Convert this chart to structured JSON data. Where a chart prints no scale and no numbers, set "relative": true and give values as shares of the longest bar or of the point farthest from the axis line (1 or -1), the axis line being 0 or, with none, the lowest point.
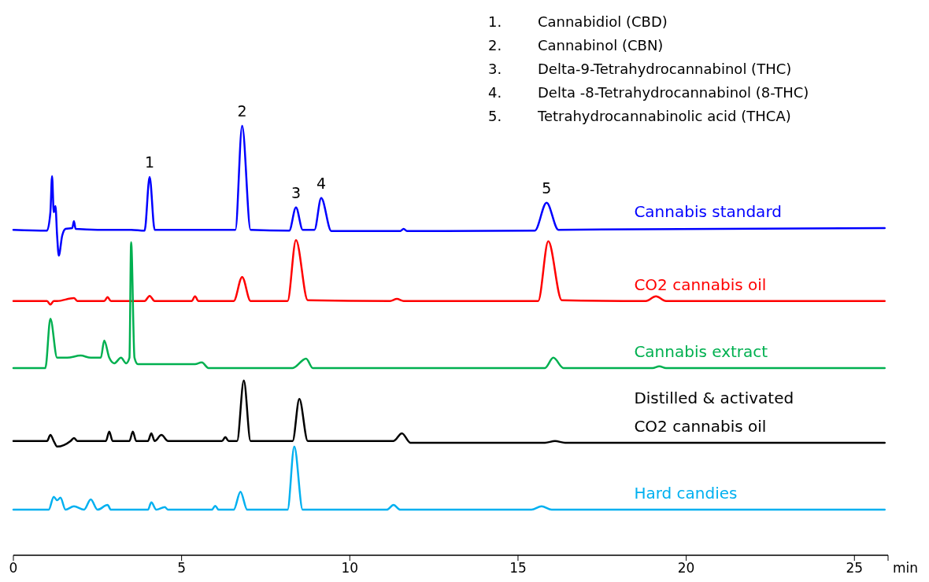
{
  "chart_data": {
    "type": "line",
    "relative": true,
    "xlabel": "min",
    "xlim": [
      0,
      26
    ],
    "xticks": [
      0,
      5,
      10,
      15,
      20,
      25
    ],
    "annotations": [
      "1.        Cannabidiol (CBD)",
      "2.        Cannabinol (CBN)",
      "3.        Delta-9-Tetrahydrocannabinol (THC)",
      "4.        Delta -8-Tetrahydrocannabinol (8-THC)",
      "5.        Tetrahydrocannabinolic acid (THCA)",
      {
        "text": "1",
        "x": 4.05,
        "y": 0.881
      },
      {
        "text": "2",
        "x": 6.8,
        "y": 1.0
      },
      {
        "text": "3",
        "x": 8.4,
        "y": 0.81
      },
      {
        "text": "4",
        "x": 9.15,
        "y": 0.832
      },
      {
        "text": "5",
        "x": 15.85,
        "y": 0.821
      }
    ],
    "series": [
      {
        "name": "Cannabis standard",
        "color": "#0000ff",
        "x": [
          0,
          1.0,
          1.1,
          1.15,
          1.2,
          1.25,
          1.3,
          1.35,
          1.45,
          1.55,
          1.75,
          1.8,
          1.85,
          2.5,
          3.5,
          3.9,
          4.05,
          4.2,
          6.6,
          6.8,
          7.05,
          8.2,
          8.4,
          8.6,
          8.95,
          9.15,
          9.45,
          11.5,
          11.6,
          11.7,
          15.5,
          15.85,
          16.2,
          25.9
        ],
        "values": [
          0.758,
          0.756,
          0.799,
          0.883,
          0.799,
          0.813,
          0.744,
          0.698,
          0.744,
          0.76,
          0.762,
          0.778,
          0.76,
          0.758,
          0.758,
          0.756,
          0.881,
          0.758,
          0.758,
          1.0,
          0.758,
          0.756,
          0.81,
          0.758,
          0.758,
          0.832,
          0.755,
          0.755,
          0.76,
          0.755,
          0.756,
          0.821,
          0.758,
          0.762
        ]
      },
      {
        "name": "CO2 cannabis oil",
        "color": "#ff0000",
        "x": [
          0,
          1.0,
          1.1,
          1.2,
          1.3,
          1.8,
          1.9,
          2.7,
          2.8,
          2.9,
          3.9,
          4.05,
          4.2,
          5.3,
          5.4,
          5.5,
          6.55,
          6.8,
          7.05,
          8.15,
          8.4,
          8.75,
          11.2,
          11.4,
          11.6,
          15.6,
          15.9,
          16.3,
          18.8,
          19.1,
          19.4,
          25.9
        ],
        "values": [
          0.592,
          0.592,
          0.584,
          0.592,
          0.592,
          0.599,
          0.592,
          0.592,
          0.601,
          0.592,
          0.592,
          0.604,
          0.592,
          0.592,
          0.603,
          0.592,
          0.592,
          0.648,
          0.592,
          0.592,
          0.734,
          0.594,
          0.592,
          0.597,
          0.592,
          0.592,
          0.731,
          0.594,
          0.592,
          0.603,
          0.592,
          0.592
        ]
      },
      {
        "name": "Cannabis extract",
        "color": "#00b050",
        "x": [
          0,
          0.95,
          1.1,
          1.3,
          1.6,
          2.0,
          2.3,
          2.6,
          2.7,
          2.85,
          3.0,
          3.2,
          3.35,
          3.45,
          3.5,
          3.6,
          3.7,
          5.4,
          5.6,
          5.8,
          8.3,
          8.7,
          8.9,
          15.8,
          16.05,
          16.35,
          19.0,
          19.2,
          19.4,
          25.9
        ],
        "values": [
          0.436,
          0.436,
          0.551,
          0.46,
          0.46,
          0.465,
          0.46,
          0.46,
          0.5,
          0.46,
          0.447,
          0.46,
          0.447,
          0.46,
          0.729,
          0.46,
          0.445,
          0.445,
          0.449,
          0.436,
          0.436,
          0.458,
          0.436,
          0.436,
          0.46,
          0.436,
          0.436,
          0.44,
          0.436,
          0.436
        ]
      },
      {
        "name": "Distilled & activated CO2 cannabis oil",
        "color": "#000000",
        "x": [
          0,
          1.0,
          1.1,
          1.2,
          1.3,
          1.7,
          1.8,
          1.9,
          2.75,
          2.85,
          2.95,
          3.45,
          3.55,
          3.65,
          4.0,
          4.1,
          4.2,
          4.4,
          4.6,
          6.2,
          6.3,
          6.4,
          6.65,
          6.85,
          7.05,
          8.3,
          8.5,
          8.75,
          11.3,
          11.55,
          11.8,
          15.8,
          16.1,
          16.4,
          25.9
        ],
        "values": [
          0.266,
          0.266,
          0.28,
          0.266,
          0.253,
          0.266,
          0.273,
          0.266,
          0.266,
          0.288,
          0.266,
          0.266,
          0.288,
          0.266,
          0.266,
          0.284,
          0.266,
          0.28,
          0.266,
          0.266,
          0.275,
          0.266,
          0.266,
          0.407,
          0.266,
          0.266,
          0.364,
          0.266,
          0.266,
          0.284,
          0.262,
          0.262,
          0.266,
          0.262,
          0.262
        ]
      },
      {
        "name": "Hard candies",
        "color": "#00b0f0",
        "x": [
          0,
          1.05,
          1.2,
          1.3,
          1.4,
          1.55,
          1.8,
          2.1,
          2.3,
          2.5,
          2.8,
          2.9,
          3.0,
          4.0,
          4.1,
          4.25,
          4.5,
          4.6,
          5.9,
          6.0,
          6.1,
          6.55,
          6.75,
          6.95,
          8.15,
          8.35,
          8.6,
          11.1,
          11.3,
          11.5,
          15.4,
          15.7,
          16.0,
          25.9
        ],
        "values": [
          0.106,
          0.106,
          0.136,
          0.128,
          0.134,
          0.106,
          0.114,
          0.106,
          0.13,
          0.106,
          0.117,
          0.106,
          0.106,
          0.106,
          0.123,
          0.106,
          0.112,
          0.106,
          0.106,
          0.115,
          0.106,
          0.106,
          0.148,
          0.106,
          0.106,
          0.253,
          0.106,
          0.106,
          0.117,
          0.106,
          0.106,
          0.114,
          0.106,
          0.106
        ]
      }
    ]
  }
}
